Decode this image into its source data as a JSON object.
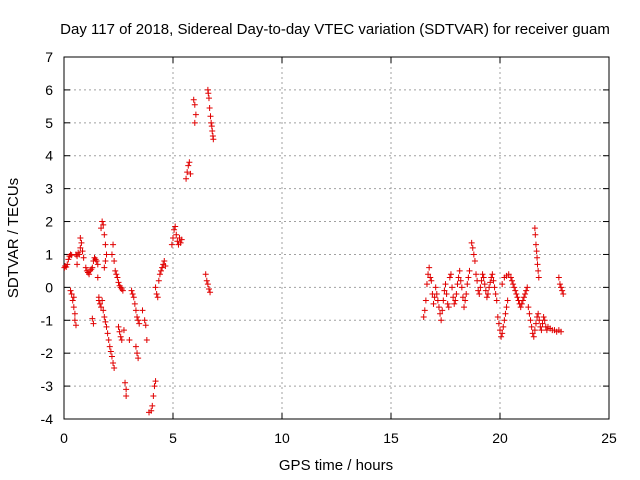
{
  "chart_data": {
    "type": "scatter",
    "title": "Day 117 of 2018, Sidereal Day-to-day VTEC variation (SDTVAR) for receiver guam",
    "xlabel": "GPS time / hours",
    "ylabel": "SDTVAR / TECUs",
    "xlim": [
      0,
      25
    ],
    "ylim": [
      -4,
      7
    ],
    "xticks": [
      "0",
      "5",
      "10",
      "15",
      "20",
      "25"
    ],
    "yticks": [
      "-4",
      "-3",
      "-2",
      "-1",
      "0",
      "1",
      "2",
      "3",
      "4",
      "5",
      "6",
      "7"
    ],
    "grid": true,
    "marker": "+",
    "marker_color": "#e00000",
    "series": [
      {
        "name": "SDTVAR",
        "points": [
          [
            0.02,
            0.6
          ],
          [
            0.05,
            0.65
          ],
          [
            0.1,
            0.62
          ],
          [
            0.15,
            0.7
          ],
          [
            0.2,
            0.85
          ],
          [
            0.25,
            0.95
          ],
          [
            0.3,
            1.0
          ],
          [
            0.35,
            0.98
          ],
          [
            0.3,
            -0.1
          ],
          [
            0.35,
            -0.2
          ],
          [
            0.4,
            -0.4
          ],
          [
            0.45,
            -0.6
          ],
          [
            0.5,
            -0.8
          ],
          [
            0.5,
            -1.0
          ],
          [
            0.55,
            -1.15
          ],
          [
            0.45,
            -0.3
          ],
          [
            0.55,
            1.0
          ],
          [
            0.6,
            0.95
          ],
          [
            0.65,
            1.05
          ],
          [
            0.7,
            1.0
          ],
          [
            0.75,
            1.2
          ],
          [
            0.75,
            1.5
          ],
          [
            0.8,
            1.35
          ],
          [
            0.85,
            1.1
          ],
          [
            0.9,
            0.9
          ],
          [
            0.6,
            0.7
          ],
          [
            1.0,
            0.6
          ],
          [
            1.05,
            0.5
          ],
          [
            1.1,
            0.45
          ],
          [
            1.15,
            0.4
          ],
          [
            1.2,
            0.5
          ],
          [
            1.25,
            0.55
          ],
          [
            1.3,
            0.6
          ],
          [
            1.35,
            0.8
          ],
          [
            1.4,
            0.9
          ],
          [
            1.45,
            0.85
          ],
          [
            1.5,
            0.8
          ],
          [
            1.55,
            0.7
          ],
          [
            1.3,
            -0.95
          ],
          [
            1.35,
            -1.1
          ],
          [
            1.55,
            0.3
          ],
          [
            1.6,
            -0.3
          ],
          [
            1.6,
            -0.4
          ],
          [
            1.65,
            -0.5
          ],
          [
            1.7,
            -0.6
          ],
          [
            1.75,
            -0.4
          ],
          [
            1.8,
            -0.7
          ],
          [
            1.85,
            -0.9
          ],
          [
            1.9,
            -1.05
          ],
          [
            1.95,
            -1.2
          ],
          [
            2.0,
            -1.4
          ],
          [
            2.05,
            -1.6
          ],
          [
            2.1,
            -1.8
          ],
          [
            2.15,
            -1.95
          ],
          [
            2.2,
            -2.1
          ],
          [
            2.25,
            -2.3
          ],
          [
            2.3,
            -2.45
          ],
          [
            1.7,
            1.8
          ],
          [
            1.75,
            2.0
          ],
          [
            1.8,
            1.9
          ],
          [
            1.85,
            1.6
          ],
          [
            1.9,
            1.3
          ],
          [
            1.95,
            1.0
          ],
          [
            1.9,
            0.8
          ],
          [
            1.85,
            0.6
          ],
          [
            2.2,
            1.0
          ],
          [
            2.25,
            1.3
          ],
          [
            2.3,
            0.8
          ],
          [
            2.35,
            0.5
          ],
          [
            2.4,
            0.4
          ],
          [
            2.45,
            0.3
          ],
          [
            2.5,
            0.15
          ],
          [
            2.55,
            0.05
          ],
          [
            2.6,
            0.0
          ],
          [
            2.65,
            -0.05
          ],
          [
            2.7,
            -0.1
          ],
          [
            2.5,
            -1.2
          ],
          [
            2.55,
            -1.35
          ],
          [
            2.6,
            -1.5
          ],
          [
            2.65,
            -1.6
          ],
          [
            2.75,
            -1.3
          ],
          [
            2.8,
            -2.9
          ],
          [
            2.85,
            -3.1
          ],
          [
            2.85,
            -3.3
          ],
          [
            3.0,
            -1.6
          ],
          [
            3.1,
            -0.1
          ],
          [
            3.15,
            -0.2
          ],
          [
            3.2,
            -0.3
          ],
          [
            3.25,
            -0.5
          ],
          [
            3.3,
            -0.7
          ],
          [
            3.35,
            -0.9
          ],
          [
            3.4,
            -1.0
          ],
          [
            3.45,
            -1.1
          ],
          [
            3.3,
            -1.8
          ],
          [
            3.35,
            -2.0
          ],
          [
            3.4,
            -2.15
          ],
          [
            3.6,
            -0.7
          ],
          [
            3.7,
            -1.0
          ],
          [
            3.75,
            -1.15
          ],
          [
            3.8,
            -1.6
          ],
          [
            3.9,
            -3.8
          ],
          [
            4.0,
            -3.75
          ],
          [
            4.05,
            -3.6
          ],
          [
            4.1,
            -3.3
          ],
          [
            4.15,
            -3.0
          ],
          [
            4.2,
            -2.85
          ],
          [
            4.2,
            0.0
          ],
          [
            4.25,
            -0.2
          ],
          [
            4.3,
            -0.3
          ],
          [
            4.35,
            0.2
          ],
          [
            4.4,
            0.4
          ],
          [
            4.45,
            0.5
          ],
          [
            4.5,
            0.6
          ],
          [
            4.55,
            0.7
          ],
          [
            4.6,
            0.8
          ],
          [
            4.65,
            0.65
          ],
          [
            4.95,
            1.3
          ],
          [
            5.0,
            1.5
          ],
          [
            5.05,
            1.75
          ],
          [
            5.1,
            1.85
          ],
          [
            5.15,
            1.6
          ],
          [
            5.2,
            1.4
          ],
          [
            5.25,
            1.3
          ],
          [
            5.3,
            1.5
          ],
          [
            5.35,
            1.35
          ],
          [
            5.4,
            1.45
          ],
          [
            5.6,
            3.3
          ],
          [
            5.65,
            3.5
          ],
          [
            5.7,
            3.7
          ],
          [
            5.75,
            3.8
          ],
          [
            5.8,
            3.45
          ],
          [
            5.95,
            5.7
          ],
          [
            6.0,
            5.55
          ],
          [
            6.05,
            5.25
          ],
          [
            6.0,
            5.0
          ],
          [
            6.5,
            0.4
          ],
          [
            6.55,
            0.2
          ],
          [
            6.6,
            0.1
          ],
          [
            6.65,
            -0.05
          ],
          [
            6.7,
            -0.15
          ],
          [
            6.6,
            6.0
          ],
          [
            6.62,
            5.9
          ],
          [
            6.65,
            5.75
          ],
          [
            6.68,
            5.45
          ],
          [
            6.72,
            5.2
          ],
          [
            6.75,
            5.0
          ],
          [
            6.78,
            4.9
          ],
          [
            6.8,
            4.75
          ],
          [
            6.83,
            4.6
          ],
          [
            6.85,
            4.5
          ],
          [
            16.5,
            -0.9
          ],
          [
            16.55,
            -0.7
          ],
          [
            16.6,
            -0.4
          ],
          [
            16.65,
            0.1
          ],
          [
            16.7,
            0.4
          ],
          [
            16.75,
            0.6
          ],
          [
            16.8,
            0.3
          ],
          [
            16.85,
            0.2
          ],
          [
            16.9,
            -0.2
          ],
          [
            16.95,
            -0.5
          ],
          [
            17.0,
            -0.3
          ],
          [
            17.05,
            0.0
          ],
          [
            17.1,
            -0.2
          ],
          [
            17.15,
            -0.4
          ],
          [
            17.2,
            -0.6
          ],
          [
            17.25,
            -0.8
          ],
          [
            17.3,
            -1.0
          ],
          [
            17.35,
            -0.7
          ],
          [
            17.4,
            -0.4
          ],
          [
            17.45,
            -0.1
          ],
          [
            17.5,
            0.1
          ],
          [
            17.55,
            -0.2
          ],
          [
            17.6,
            -0.5
          ],
          [
            17.65,
            -0.6
          ],
          [
            17.7,
            0.3
          ],
          [
            17.75,
            0.4
          ],
          [
            17.8,
            0.0
          ],
          [
            17.85,
            -0.3
          ],
          [
            17.9,
            -0.5
          ],
          [
            17.95,
            -0.4
          ],
          [
            18.0,
            -0.2
          ],
          [
            18.05,
            0.1
          ],
          [
            18.1,
            0.3
          ],
          [
            18.15,
            0.5
          ],
          [
            18.2,
            0.2
          ],
          [
            18.25,
            0.0
          ],
          [
            18.3,
            -0.3
          ],
          [
            18.35,
            -0.6
          ],
          [
            18.4,
            -0.4
          ],
          [
            18.45,
            -0.2
          ],
          [
            18.5,
            0.1
          ],
          [
            18.55,
            0.3
          ],
          [
            18.6,
            0.5
          ],
          [
            18.7,
            1.35
          ],
          [
            18.75,
            1.2
          ],
          [
            18.8,
            1.0
          ],
          [
            18.85,
            0.8
          ],
          [
            18.9,
            0.4
          ],
          [
            18.95,
            0.2
          ],
          [
            19.0,
            -0.1
          ],
          [
            19.05,
            -0.2
          ],
          [
            19.1,
            0.0
          ],
          [
            19.15,
            0.2
          ],
          [
            19.2,
            0.4
          ],
          [
            19.25,
            0.3
          ],
          [
            19.3,
            0.1
          ],
          [
            19.35,
            -0.1
          ],
          [
            19.4,
            -0.3
          ],
          [
            19.45,
            -0.2
          ],
          [
            19.5,
            0.0
          ],
          [
            19.55,
            0.15
          ],
          [
            19.6,
            0.3
          ],
          [
            19.65,
            0.4
          ],
          [
            19.7,
            0.2
          ],
          [
            19.75,
            0.0
          ],
          [
            19.8,
            -0.2
          ],
          [
            19.85,
            -0.4
          ],
          [
            19.9,
            -0.9
          ],
          [
            19.95,
            -1.1
          ],
          [
            20.0,
            -1.3
          ],
          [
            20.05,
            -1.5
          ],
          [
            20.1,
            -1.4
          ],
          [
            20.15,
            -1.2
          ],
          [
            20.2,
            -1.0
          ],
          [
            20.25,
            -0.8
          ],
          [
            20.3,
            -0.6
          ],
          [
            20.35,
            -0.4
          ],
          [
            20.1,
            0.1
          ],
          [
            20.2,
            0.3
          ],
          [
            20.3,
            0.35
          ],
          [
            20.4,
            0.4
          ],
          [
            20.5,
            0.3
          ],
          [
            20.55,
            0.2
          ],
          [
            20.6,
            0.1
          ],
          [
            20.65,
            0.0
          ],
          [
            20.7,
            -0.1
          ],
          [
            20.75,
            -0.2
          ],
          [
            20.8,
            -0.3
          ],
          [
            20.85,
            -0.4
          ],
          [
            20.9,
            -0.5
          ],
          [
            20.95,
            -0.6
          ],
          [
            21.0,
            -0.5
          ],
          [
            21.05,
            -0.4
          ],
          [
            21.1,
            -0.3
          ],
          [
            21.15,
            -0.2
          ],
          [
            21.2,
            -0.1
          ],
          [
            21.25,
            0.0
          ],
          [
            21.3,
            -0.6
          ],
          [
            21.35,
            -0.8
          ],
          [
            21.4,
            -1.0
          ],
          [
            21.45,
            -1.2
          ],
          [
            21.5,
            -1.4
          ],
          [
            21.55,
            -1.5
          ],
          [
            21.6,
            -1.3
          ],
          [
            21.65,
            -1.1
          ],
          [
            21.7,
            -0.9
          ],
          [
            21.75,
            -0.8
          ],
          [
            21.8,
            -1.0
          ],
          [
            21.85,
            -1.2
          ],
          [
            21.9,
            -1.3
          ],
          [
            21.95,
            -1.1
          ],
          [
            22.0,
            -0.9
          ],
          [
            22.05,
            -1.0
          ],
          [
            22.1,
            -1.2
          ],
          [
            22.15,
            -1.3
          ],
          [
            21.6,
            1.8
          ],
          [
            21.62,
            1.6
          ],
          [
            21.65,
            1.3
          ],
          [
            21.68,
            1.1
          ],
          [
            21.7,
            0.9
          ],
          [
            21.72,
            0.7
          ],
          [
            21.75,
            0.5
          ],
          [
            21.78,
            0.3
          ],
          [
            22.2,
            -1.2
          ],
          [
            22.3,
            -1.25
          ],
          [
            22.4,
            -1.3
          ],
          [
            22.5,
            -1.3
          ],
          [
            22.6,
            -1.35
          ],
          [
            22.7,
            -1.3
          ],
          [
            22.8,
            -1.35
          ],
          [
            22.7,
            0.3
          ],
          [
            22.75,
            0.1
          ],
          [
            22.8,
            0.0
          ],
          [
            22.85,
            -0.1
          ],
          [
            22.9,
            -0.2
          ]
        ]
      }
    ]
  }
}
